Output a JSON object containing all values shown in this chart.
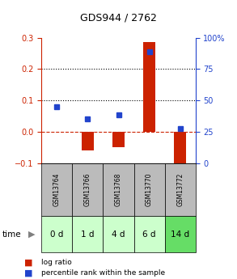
{
  "title": "GDS944 / 2762",
  "samples": [
    "GSM13764",
    "GSM13766",
    "GSM13768",
    "GSM13770",
    "GSM13772"
  ],
  "time_labels": [
    "0 d",
    "1 d",
    "4 d",
    "6 d",
    "14 d"
  ],
  "log_ratio": [
    0.0,
    -0.06,
    -0.05,
    0.285,
    -0.1
  ],
  "percentile_rank": [
    0.08,
    0.04,
    0.055,
    0.255,
    0.01
  ],
  "ylim_left": [
    -0.1,
    0.3
  ],
  "ylim_right": [
    0,
    100
  ],
  "left_ticks": [
    -0.1,
    0.0,
    0.1,
    0.2,
    0.3
  ],
  "right_ticks": [
    0,
    25,
    50,
    75,
    100
  ],
  "bar_color": "#cc2200",
  "dot_color": "#2244cc",
  "bar_width": 0.4,
  "background_color": "#ffffff",
  "plot_bg": "#ffffff",
  "dashed_line_color": "#cc2200",
  "gsm_bg": "#bbbbbb",
  "time_bg_colors": [
    "#ccffcc",
    "#ccffcc",
    "#ccffcc",
    "#ccffcc",
    "#66dd66"
  ],
  "title_fontsize": 9,
  "tick_fontsize": 7,
  "gsm_fontsize": 5.5,
  "time_fontsize": 7.5
}
